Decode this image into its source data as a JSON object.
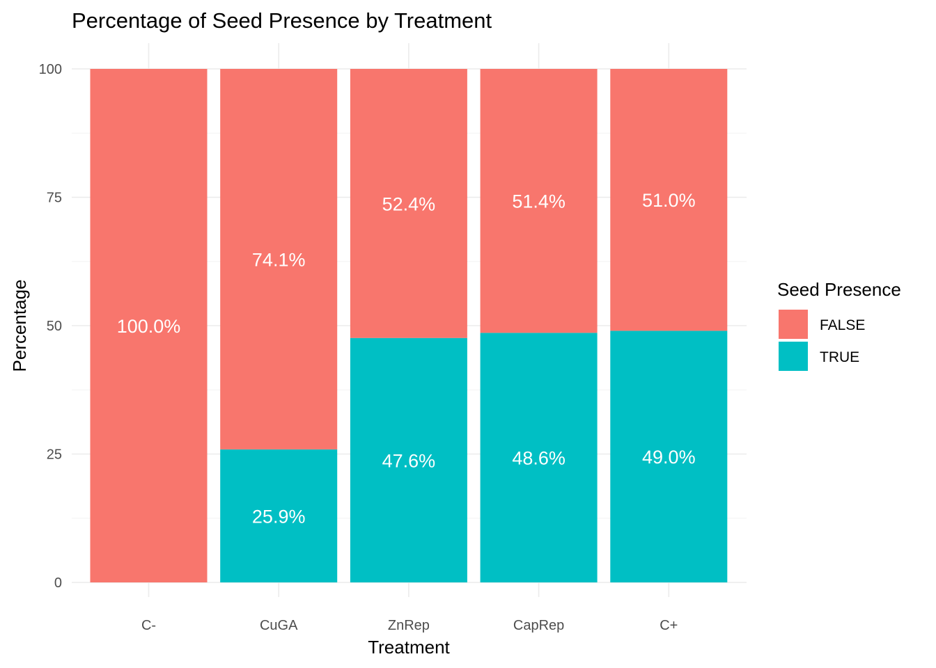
{
  "chart_data": {
    "type": "bar",
    "stacked": true,
    "title": "Percentage of Seed Presence by Treatment",
    "xlabel": "Treatment",
    "ylabel": "Percentage",
    "ylim": [
      0,
      100
    ],
    "yticks": [
      0,
      25,
      50,
      75,
      100
    ],
    "categories": [
      "C-",
      "CuGA",
      "ZnRep",
      "CapRep",
      "C+"
    ],
    "series": [
      {
        "name": "TRUE",
        "color": "#00BFC4",
        "values": [
          0,
          25.9,
          47.6,
          48.6,
          49.0
        ],
        "labels": [
          "",
          "25.9%",
          "47.6%",
          "48.6%",
          "49.0%"
        ]
      },
      {
        "name": "FALSE",
        "color": "#F8766D",
        "values": [
          100.0,
          74.1,
          52.4,
          51.4,
          51.0
        ],
        "labels": [
          "100.0%",
          "74.1%",
          "52.4%",
          "51.4%",
          "51.0%"
        ]
      }
    ],
    "grid": true,
    "legend": {
      "title": "Seed Presence",
      "placement": "right",
      "entries": [
        {
          "label": "FALSE",
          "color": "#F8766D"
        },
        {
          "label": "TRUE",
          "color": "#00BFC4"
        }
      ]
    }
  }
}
